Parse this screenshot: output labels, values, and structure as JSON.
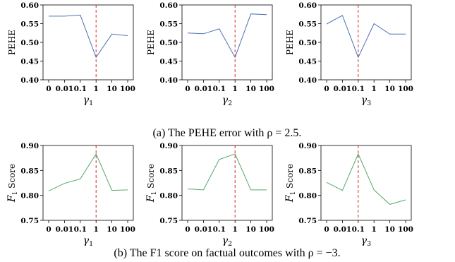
{
  "chart_data": [
    {
      "type": "line",
      "row": 0,
      "col": 0,
      "xlabel": "γ1",
      "xlabel_main": "γ",
      "xlabel_sub": "1",
      "ylabel": "PEHE",
      "categories": [
        "0",
        "0.01",
        "0.1",
        "1",
        "10",
        "100"
      ],
      "values": [
        0.57,
        0.57,
        0.573,
        0.46,
        0.522,
        0.518
      ],
      "ylim": [
        0.4,
        0.6
      ],
      "yticks": [
        "0.40",
        "0.45",
        "0.50",
        "0.55",
        "0.60"
      ],
      "highlight_category": "1",
      "line_color": "#4c72b0",
      "marker_color": "#d62728"
    },
    {
      "type": "line",
      "row": 0,
      "col": 1,
      "xlabel": "γ2",
      "xlabel_main": "γ",
      "xlabel_sub": "2",
      "ylabel": "PEHE",
      "categories": [
        "0",
        "0.01",
        "0.1",
        "1",
        "10",
        "100"
      ],
      "values": [
        0.525,
        0.523,
        0.536,
        0.46,
        0.576,
        0.574
      ],
      "ylim": [
        0.4,
        0.6
      ],
      "yticks": [
        "0.40",
        "0.45",
        "0.50",
        "0.55",
        "0.60"
      ],
      "highlight_category": "1",
      "line_color": "#4c72b0",
      "marker_color": "#d62728"
    },
    {
      "type": "line",
      "row": 0,
      "col": 2,
      "xlabel": "γ3",
      "xlabel_main": "γ",
      "xlabel_sub": "3",
      "ylabel": "PEHE",
      "categories": [
        "0",
        "0.01",
        "0.1",
        "1",
        "10",
        "100"
      ],
      "values": [
        0.549,
        0.572,
        0.46,
        0.55,
        0.522,
        0.522
      ],
      "ylim": [
        0.4,
        0.6
      ],
      "yticks": [
        "0.40",
        "0.45",
        "0.50",
        "0.55",
        "0.60"
      ],
      "highlight_category": "0.1",
      "line_color": "#4c72b0",
      "marker_color": "#d62728"
    },
    {
      "type": "line",
      "row": 1,
      "col": 0,
      "xlabel": "γ1",
      "xlabel_main": "γ",
      "xlabel_sub": "1",
      "ylabel": "F1 Score",
      "ylabel_main": "F",
      "ylabel_sub": "1",
      "ylabel_rest": " Score",
      "categories": [
        "0",
        "0.01",
        "0.1",
        "1",
        "10",
        "100"
      ],
      "values": [
        0.809,
        0.824,
        0.833,
        0.883,
        0.81,
        0.811
      ],
      "ylim": [
        0.75,
        0.9
      ],
      "yticks": [
        "0.75",
        "0.80",
        "0.85",
        "0.90"
      ],
      "highlight_category": "1",
      "line_color": "#55a868",
      "marker_color": "#d62728"
    },
    {
      "type": "line",
      "row": 1,
      "col": 1,
      "xlabel": "γ2",
      "xlabel_main": "γ",
      "xlabel_sub": "2",
      "ylabel": "F1 Score",
      "ylabel_main": "F",
      "ylabel_sub": "1",
      "ylabel_rest": " Score",
      "categories": [
        "0",
        "0.01",
        "0.1",
        "1",
        "10",
        "100"
      ],
      "values": [
        0.813,
        0.811,
        0.872,
        0.883,
        0.811,
        0.811
      ],
      "ylim": [
        0.75,
        0.9
      ],
      "yticks": [
        "0.75",
        "0.80",
        "0.85",
        "0.90"
      ],
      "highlight_category": "1",
      "line_color": "#55a868",
      "marker_color": "#d62728"
    },
    {
      "type": "line",
      "row": 1,
      "col": 2,
      "xlabel": "γ3",
      "xlabel_main": "γ",
      "xlabel_sub": "3",
      "ylabel": "F1 Score",
      "ylabel_main": "F",
      "ylabel_sub": "1",
      "ylabel_rest": " Score",
      "categories": [
        "0",
        "0.01",
        "0.1",
        "1",
        "10",
        "100"
      ],
      "values": [
        0.826,
        0.81,
        0.883,
        0.811,
        0.782,
        0.791
      ],
      "ylim": [
        0.75,
        0.9
      ],
      "yticks": [
        "0.75",
        "0.80",
        "0.85",
        "0.90"
      ],
      "highlight_category": "0.1",
      "line_color": "#55a868",
      "marker_color": "#d62728"
    }
  ],
  "captions": {
    "a": "(a) The PEHE error with ρ = 2.5.",
    "b": "(b) The F1 score on factual outcomes with ρ = −3."
  }
}
